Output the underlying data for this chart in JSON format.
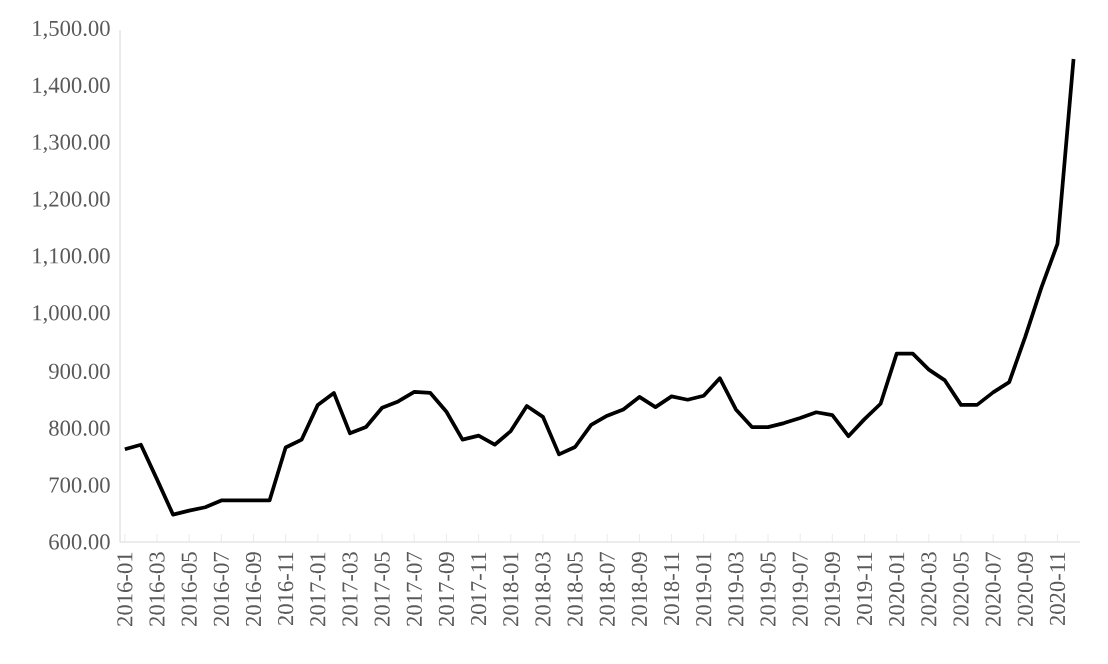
{
  "chart_data": {
    "type": "line",
    "categories": [
      "2016-01",
      null,
      "2016-03",
      null,
      "2016-05",
      null,
      "2016-07",
      null,
      "2016-09",
      null,
      "2016-11",
      null,
      "2017-01",
      null,
      "2017-03",
      null,
      "2017-05",
      null,
      "2017-07",
      null,
      "2017-09",
      null,
      "2017-11",
      null,
      "2018-01",
      null,
      "2018-03",
      null,
      "2018-05",
      null,
      "2018-07",
      null,
      "2018-09",
      null,
      "2018-11",
      null,
      "2019-01",
      null,
      "2019-03",
      null,
      "2019-05",
      null,
      "2019-07",
      null,
      "2019-09",
      null,
      "2019-11",
      null,
      "2020-01",
      null,
      "2020-03",
      null,
      "2020-05",
      null,
      "2020-07",
      null,
      "2020-09",
      null,
      "2020-11",
      null
    ],
    "values": [
      763,
      771,
      710,
      648,
      655,
      661,
      673,
      673,
      673,
      673,
      766,
      780,
      841,
      862,
      791,
      802,
      836,
      847,
      864,
      862,
      829,
      780,
      787,
      771,
      795,
      839,
      820,
      754,
      767,
      806,
      822,
      833,
      855,
      837,
      856,
      850,
      857,
      888,
      833,
      802,
      802,
      809,
      818,
      828,
      823,
      786,
      816,
      843,
      931,
      931,
      903,
      884,
      841,
      841,
      863,
      881,
      961,
      1047,
      1124,
      1449
    ],
    "color": "#000000",
    "ylim": [
      600,
      1500
    ],
    "yticks": [
      {
        "value": 600,
        "label": "600.00"
      },
      {
        "value": 700,
        "label": "700.00"
      },
      {
        "value": 800,
        "label": "800.00"
      },
      {
        "value": 900,
        "label": "900.00"
      },
      {
        "value": 1000,
        "label": "1,000.00"
      },
      {
        "value": 1100,
        "label": "1,100.00"
      },
      {
        "value": 1200,
        "label": "1,200.00"
      },
      {
        "value": 1300,
        "label": "1,300.00"
      },
      {
        "value": 1400,
        "label": "1,400.00"
      },
      {
        "value": 1500,
        "label": "1,500.00"
      }
    ]
  }
}
